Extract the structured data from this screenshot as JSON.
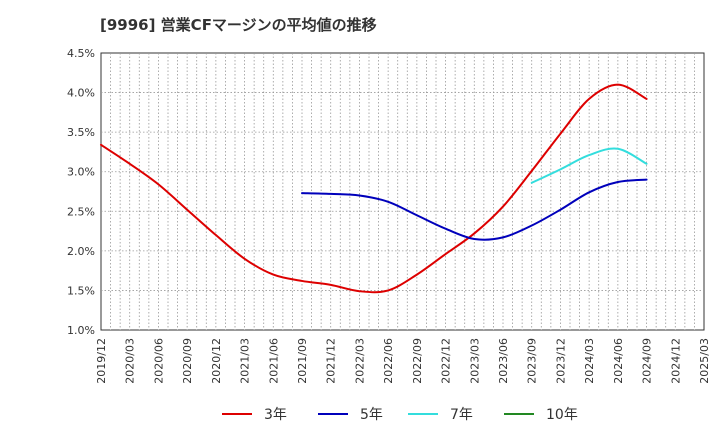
{
  "chart_data": {
    "type": "line",
    "title": "[9996]  営業CFマージンの平均値の推移",
    "xlabel": "",
    "ylabel": "",
    "x_ticks": [
      "2019/12",
      "2020/03",
      "2020/06",
      "2020/09",
      "2020/12",
      "2021/03",
      "2021/06",
      "2021/09",
      "2021/12",
      "2022/03",
      "2022/06",
      "2022/09",
      "2022/12",
      "2023/03",
      "2023/06",
      "2023/09",
      "2023/12",
      "2024/03",
      "2024/06",
      "2024/09",
      "2024/12",
      "2025/03"
    ],
    "y_ticks": [
      "1.0%",
      "1.5%",
      "2.0%",
      "2.5%",
      "3.0%",
      "3.5%",
      "4.0%",
      "4.5%"
    ],
    "ylim": [
      1.0,
      4.5
    ],
    "grid": true,
    "legend_position": "bottom",
    "series": [
      {
        "name": "3年",
        "color": "#dd0000",
        "points": [
          [
            "2019/12",
            3.34
          ],
          [
            "2020/03",
            3.1
          ],
          [
            "2020/06",
            2.84
          ],
          [
            "2020/09",
            2.52
          ],
          [
            "2020/12",
            2.2
          ],
          [
            "2021/03",
            1.9
          ],
          [
            "2021/06",
            1.7
          ],
          [
            "2021/09",
            1.62
          ],
          [
            "2021/12",
            1.57
          ],
          [
            "2022/03",
            1.49
          ],
          [
            "2022/06",
            1.5
          ],
          [
            "2022/09",
            1.7
          ],
          [
            "2022/12",
            1.96
          ],
          [
            "2023/03",
            2.22
          ],
          [
            "2023/06",
            2.56
          ],
          [
            "2023/09",
            3.01
          ],
          [
            "2023/12",
            3.48
          ],
          [
            "2024/03",
            3.92
          ],
          [
            "2024/06",
            4.1
          ],
          [
            "2024/09",
            3.92
          ]
        ]
      },
      {
        "name": "5年",
        "color": "#0000bb",
        "points": [
          [
            "2021/09",
            2.73
          ],
          [
            "2021/12",
            2.72
          ],
          [
            "2022/03",
            2.7
          ],
          [
            "2022/06",
            2.62
          ],
          [
            "2022/09",
            2.45
          ],
          [
            "2022/12",
            2.28
          ],
          [
            "2023/03",
            2.15
          ],
          [
            "2023/06",
            2.17
          ],
          [
            "2023/09",
            2.32
          ],
          [
            "2023/12",
            2.52
          ],
          [
            "2024/03",
            2.74
          ],
          [
            "2024/06",
            2.87
          ],
          [
            "2024/09",
            2.9
          ]
        ]
      },
      {
        "name": "7年",
        "color": "#33dddd",
        "points": [
          [
            "2023/09",
            2.86
          ],
          [
            "2023/12",
            3.03
          ],
          [
            "2024/03",
            3.21
          ],
          [
            "2024/06",
            3.29
          ],
          [
            "2024/09",
            3.1
          ]
        ]
      },
      {
        "name": "10年",
        "color": "#228822",
        "points": []
      }
    ]
  }
}
